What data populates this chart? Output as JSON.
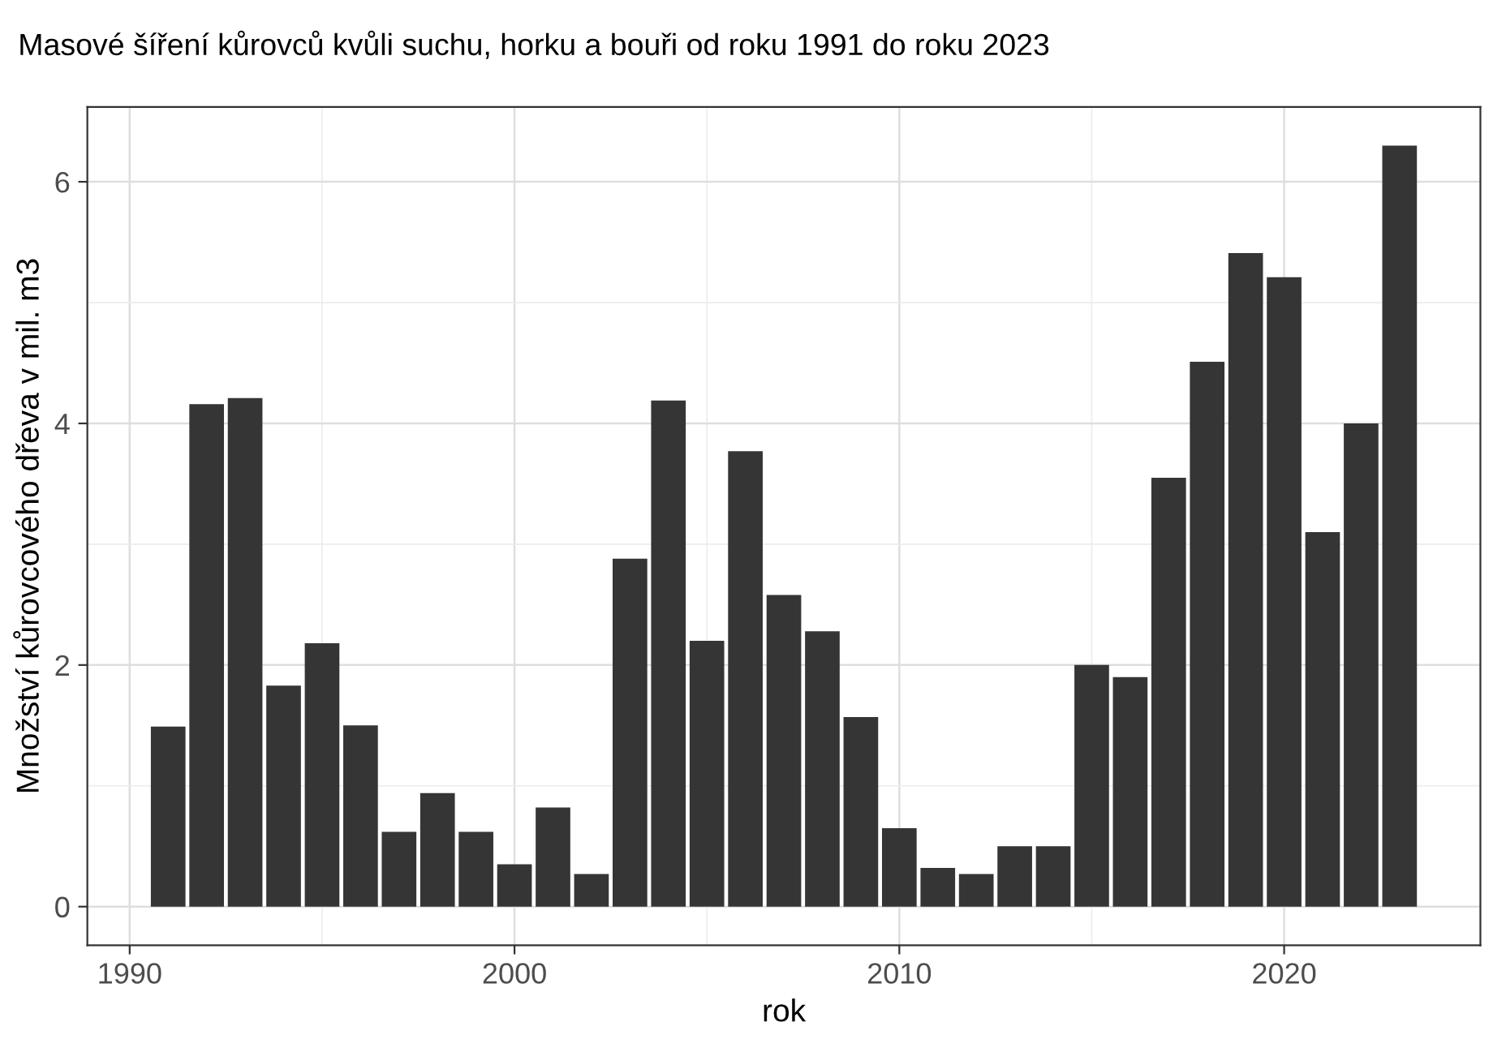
{
  "chart_data": {
    "type": "bar",
    "title": "Masové šíření kůrovců kvůli suchu, horku a bouři od roku 1991 do roku 2023",
    "xlabel": "rok",
    "ylabel": "Množství kůrovcového dřeva v mil. m3",
    "x": [
      1991,
      1992,
      1993,
      1994,
      1995,
      1996,
      1997,
      1998,
      1999,
      2000,
      2001,
      2002,
      2003,
      2004,
      2005,
      2006,
      2007,
      2008,
      2009,
      2010,
      2011,
      2012,
      2013,
      2014,
      2015,
      2016,
      2017,
      2018,
      2019,
      2020,
      2021,
      2022,
      2023
    ],
    "values": [
      1.49,
      4.16,
      4.21,
      1.83,
      2.18,
      1.5,
      0.62,
      0.94,
      0.62,
      0.35,
      0.82,
      0.27,
      2.88,
      4.19,
      2.2,
      3.77,
      2.58,
      2.28,
      1.57,
      0.65,
      0.32,
      0.27,
      0.5,
      0.5,
      2.0,
      1.9,
      3.55,
      4.51,
      5.41,
      5.21,
      3.1,
      4.0,
      6.3
    ],
    "color": "#353535",
    "xlim": [
      1988.9,
      2025.1
    ],
    "ylim": [
      -0.32,
      6.62
    ],
    "xticks": [
      1990,
      2000,
      2010,
      2020
    ],
    "yticks": [
      0,
      2,
      4,
      6
    ],
    "grid": true
  }
}
